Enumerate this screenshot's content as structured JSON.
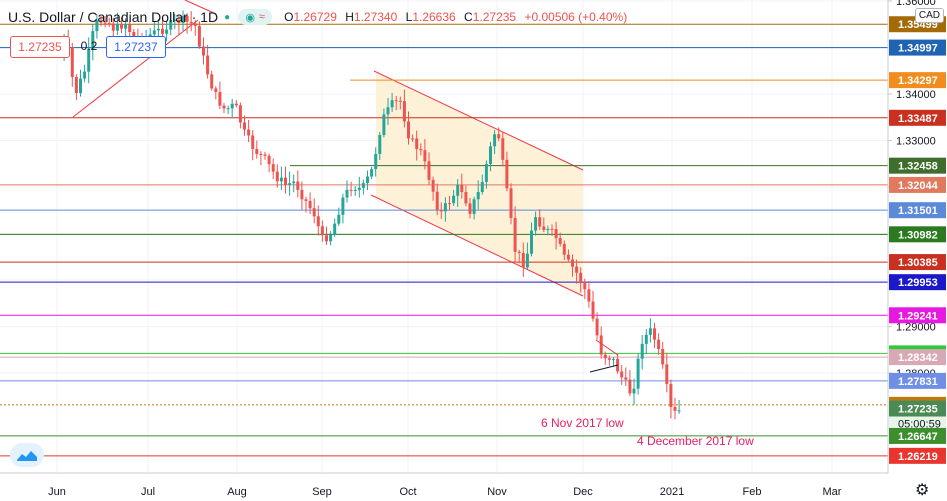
{
  "header": {
    "title": "U.S. Dollar / Canadian Dollar · 1D",
    "open_label": "O",
    "open": "1.26729",
    "high_label": "H",
    "high": "1.27340",
    "low_label": "L",
    "low": "1.26636",
    "close_label": "C",
    "close": "1.27235",
    "change": "+0.00506 (+0.40%)",
    "approx_icon": "≈"
  },
  "quote": {
    "sell": "1.27235",
    "spread": "0.2",
    "buy": "1.27237"
  },
  "currency": "CAD",
  "colors": {
    "up": "#26a69a",
    "down": "#ef5350",
    "channel_fill": "#fdf1d6",
    "channel_line": "#f23645"
  },
  "chart_data": {
    "type": "candlestick",
    "x_ticks": [
      "Jun",
      "Jul",
      "Aug",
      "Sep",
      "Oct",
      "Nov",
      "Dec",
      "2021",
      "Feb",
      "Mar"
    ],
    "y_ticks": [
      "1.36000",
      "1.34000",
      "1.33000",
      "1.32000",
      "1.31000",
      "1.30000",
      "1.29000",
      "1.28000"
    ],
    "ylim": [
      1.2585,
      1.3602
    ],
    "price_levels": [
      {
        "value": 1.35499,
        "label": "1.35499",
        "color": "#a56a08"
      },
      {
        "value": 1.34997,
        "label": "1.34997",
        "color": "#1e63b4"
      },
      {
        "value": 1.34297,
        "label": "1.34297",
        "color": "#f28c1d"
      },
      {
        "value": 1.33487,
        "label": "1.33487",
        "color": "#c9301f"
      },
      {
        "value": 1.32458,
        "label": "1.32458",
        "color": "#3e6e2c"
      },
      {
        "value": 1.32044,
        "label": "1.32044",
        "color": "#e0795e"
      },
      {
        "value": 1.31501,
        "label": "1.31501",
        "color": "#5b8ad8"
      },
      {
        "value": 1.30982,
        "label": "1.30982",
        "color": "#2c7a1f"
      },
      {
        "value": 1.30385,
        "label": "1.30385",
        "color": "#c9301f"
      },
      {
        "value": 1.29953,
        "label": "1.29953",
        "color": "#1b18c9"
      },
      {
        "value": 1.29241,
        "label": "1.29241",
        "color": "#e619e0"
      },
      {
        "value": 1.28422,
        "label": "1.28422",
        "color": "#2fc93a"
      },
      {
        "value": 1.28342,
        "label": "1.28342",
        "color": "#d8a9b5"
      },
      {
        "value": 1.27831,
        "label": "1.27831",
        "color": "#6f8ee6"
      },
      {
        "value": 1.27315,
        "label": "1.27315",
        "color": "#c17a12"
      },
      {
        "value": 1.27235,
        "label": "1.27235",
        "color": "#4c8a55"
      },
      {
        "value": 1.26647,
        "label": "1.26647",
        "color": "#3c8f2c"
      },
      {
        "value": 1.26219,
        "label": "1.26219",
        "color": "#e8352e"
      }
    ],
    "countdown": "05:00:59",
    "annotations": [
      "6 Nov 2017 low",
      "4 December 2017 low"
    ]
  }
}
